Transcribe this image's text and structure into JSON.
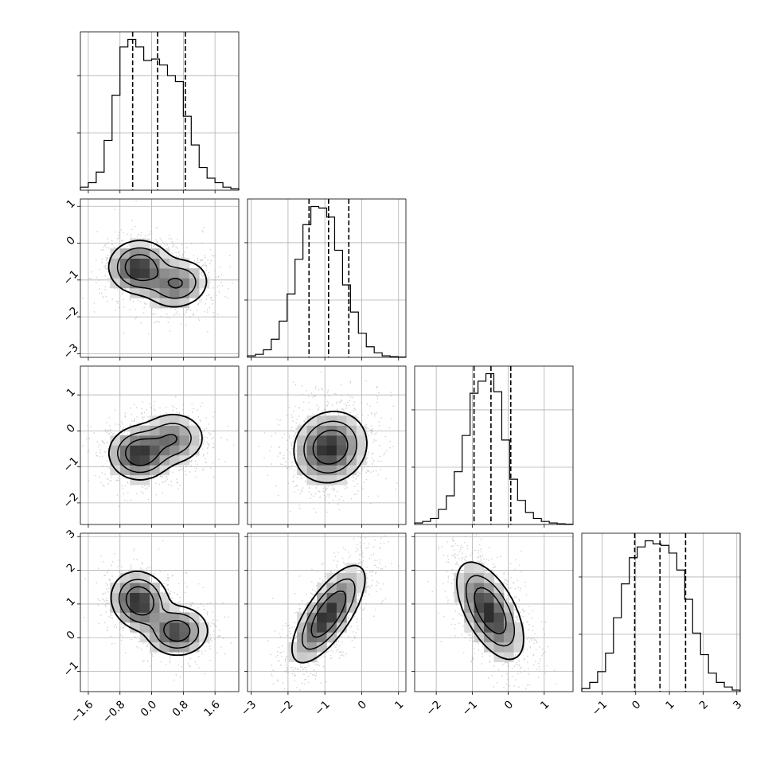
{
  "chart_data": {
    "type": "corner",
    "n_params": 4,
    "grid": true,
    "histogram": {
      "style": "step",
      "quantiles": [
        0.16,
        0.5,
        0.84
      ]
    },
    "contours": {
      "levels": 3,
      "filled": "greyscale",
      "scatter": true
    },
    "params": [
      {
        "index": 0,
        "range": [
          -1.8,
          2.2
        ],
        "median": 0.15,
        "q16": -0.48,
        "q84": 0.85,
        "ticks": [
          -1.6,
          -0.8,
          0.0,
          0.8,
          1.6
        ],
        "tick_labels": [
          "−1.6",
          "−0.8",
          "0.0",
          "0.8",
          "1.6"
        ],
        "hist_bins": 20,
        "hist_values": [
          0.02,
          0.05,
          0.12,
          0.33,
          0.63,
          0.95,
          1.0,
          0.95,
          0.86,
          0.87,
          0.83,
          0.76,
          0.72,
          0.49,
          0.3,
          0.15,
          0.08,
          0.05,
          0.02,
          0.01
        ]
      },
      {
        "index": 1,
        "range": [
          -3.1,
          1.2
        ],
        "median": -0.9,
        "q16": -1.43,
        "q84": -0.35,
        "ticks": [
          -3,
          -2,
          -1,
          0,
          1
        ],
        "tick_labels": [
          "−3",
          "−2",
          "−1",
          "0",
          "1"
        ],
        "hist_bins": 20,
        "hist_values": [
          0.01,
          0.02,
          0.05,
          0.12,
          0.24,
          0.42,
          0.65,
          0.88,
          1.0,
          0.99,
          0.93,
          0.71,
          0.48,
          0.3,
          0.16,
          0.07,
          0.03,
          0.01,
          0.005,
          0.002
        ]
      },
      {
        "index": 2,
        "range": [
          -2.6,
          1.8
        ],
        "median": -0.48,
        "q16": -0.95,
        "q84": 0.07,
        "ticks": [
          -2,
          -1,
          0,
          1
        ],
        "tick_labels": [
          "−2",
          "−1",
          "0",
          "1"
        ],
        "hist_bins": 20,
        "hist_values": [
          0.01,
          0.02,
          0.04,
          0.1,
          0.19,
          0.35,
          0.59,
          0.87,
          0.95,
          1.0,
          0.88,
          0.56,
          0.3,
          0.16,
          0.08,
          0.04,
          0.02,
          0.01,
          0.005,
          0.002
        ]
      },
      {
        "index": 3,
        "range": [
          -1.6,
          3.1
        ],
        "median": 0.72,
        "q16": -0.03,
        "q84": 1.48,
        "ticks": [
          -1,
          0,
          1,
          2,
          3
        ],
        "tick_labels": [
          "−1",
          "0",
          "1",
          "2",
          "3"
        ],
        "hist_bins": 20,
        "hist_values": [
          0.02,
          0.06,
          0.13,
          0.25,
          0.48,
          0.7,
          0.87,
          0.94,
          0.98,
          0.96,
          0.95,
          0.9,
          0.79,
          0.6,
          0.38,
          0.24,
          0.12,
          0.06,
          0.03,
          0.01
        ]
      }
    ],
    "pairs": [
      {
        "x": 0,
        "y": 1,
        "modes": [
          {
            "center": [
              -0.3,
              -0.65
            ],
            "sigma": [
              0.38,
              0.35
            ],
            "rho": 0.0,
            "weight": 0.6
          },
          {
            "center": [
              0.65,
              -1.1
            ],
            "sigma": [
              0.4,
              0.34
            ],
            "rho": 0.1,
            "weight": 0.4
          }
        ]
      },
      {
        "x": 0,
        "y": 2,
        "modes": [
          {
            "center": [
              -0.3,
              -0.62
            ],
            "sigma": [
              0.38,
              0.36
            ],
            "rho": 0.0,
            "weight": 0.6
          },
          {
            "center": [
              0.55,
              -0.2
            ],
            "sigma": [
              0.4,
              0.36
            ],
            "rho": 0.0,
            "weight": 0.4
          }
        ]
      },
      {
        "x": 1,
        "y": 2,
        "modes": [
          {
            "center": [
              -0.85,
              -0.45
            ],
            "sigma": [
              0.48,
              0.48
            ],
            "rho": 0.1,
            "weight": 1.0
          }
        ]
      },
      {
        "x": 0,
        "y": 3,
        "modes": [
          {
            "center": [
              -0.3,
              1.1
            ],
            "sigma": [
              0.35,
              0.42
            ],
            "rho": -0.1,
            "weight": 0.55
          },
          {
            "center": [
              0.65,
              0.2
            ],
            "sigma": [
              0.38,
              0.36
            ],
            "rho": 0.0,
            "weight": 0.45
          }
        ]
      },
      {
        "x": 1,
        "y": 3,
        "modes": [
          {
            "center": [
              -0.9,
              0.7
            ],
            "sigma": [
              0.48,
              0.7
            ],
            "rho": 0.72,
            "weight": 1.0
          }
        ]
      },
      {
        "x": 2,
        "y": 3,
        "modes": [
          {
            "center": [
              -0.5,
              0.8
            ],
            "sigma": [
              0.45,
              0.7
            ],
            "rho": -0.58,
            "weight": 1.0
          }
        ]
      }
    ]
  }
}
